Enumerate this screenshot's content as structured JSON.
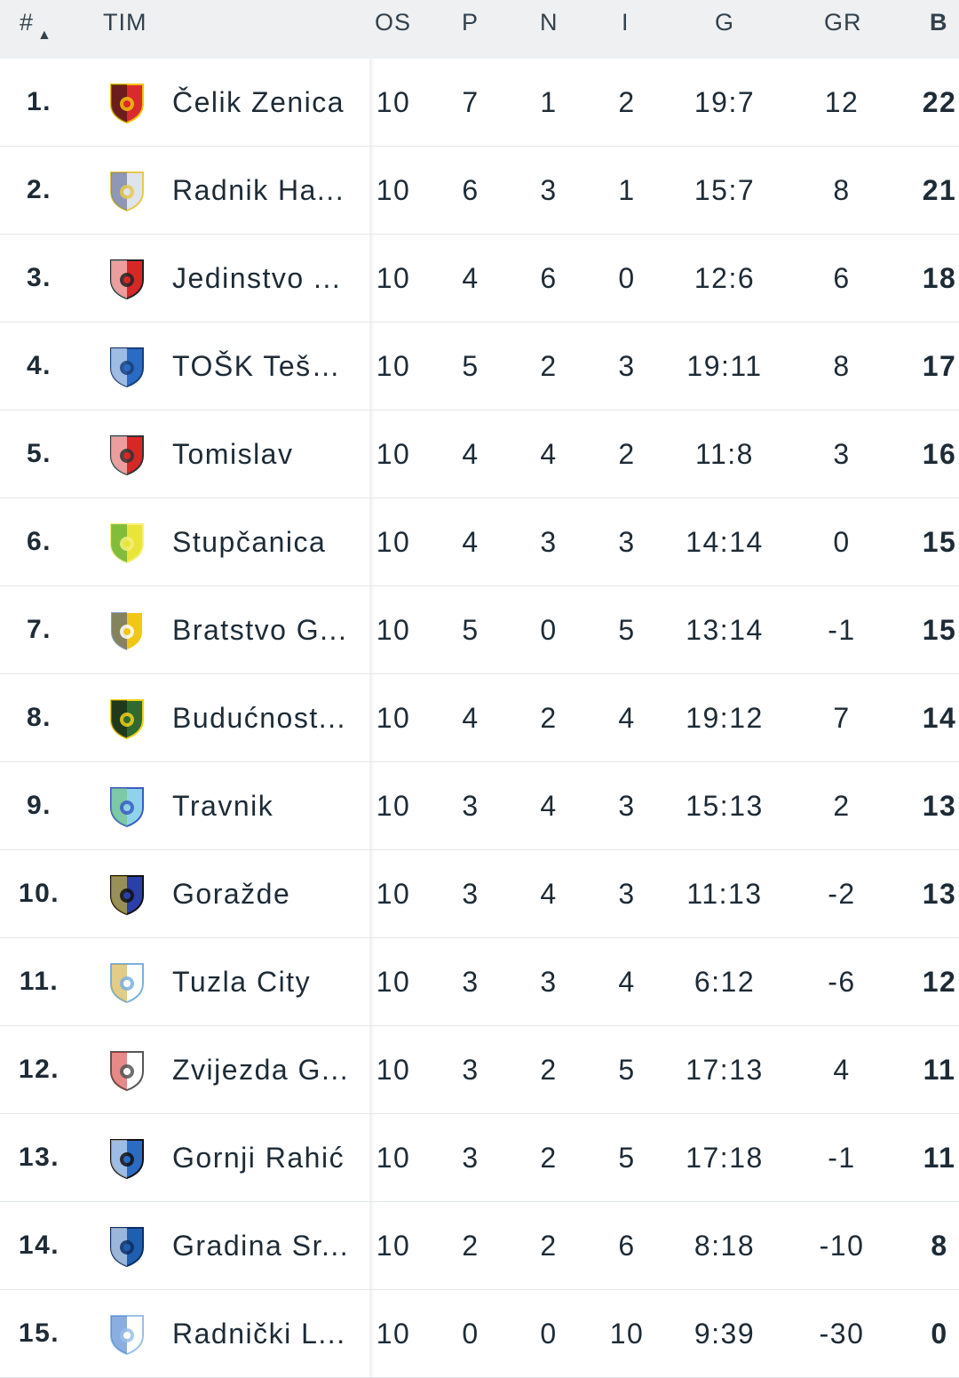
{
  "header": {
    "rank": "#",
    "sort_icon": "▲",
    "team": "TIM",
    "played": "OS",
    "wins": "P",
    "draws": "N",
    "losses": "I",
    "goals": "G",
    "goal_diff": "GR",
    "points": "B"
  },
  "rows": [
    {
      "rank": "1.",
      "team": "Čelik Zenica",
      "played": "10",
      "wins": "7",
      "draws": "1",
      "losses": "2",
      "goals": "19:7",
      "gd": "12",
      "points": "22",
      "crest": {
        "a": "#d92b2b",
        "b": "#111111",
        "c": "#f4c20d"
      }
    },
    {
      "rank": "2.",
      "team": "Radnik Ha...",
      "played": "10",
      "wins": "6",
      "draws": "3",
      "losses": "1",
      "goals": "15:7",
      "gd": "8",
      "points": "21",
      "crest": {
        "a": "#dfe3ea",
        "b": "#4a5a8a",
        "c": "#e8c94a"
      }
    },
    {
      "rank": "3.",
      "team": "Jedinstvo ...",
      "played": "10",
      "wins": "4",
      "draws": "6",
      "losses": "0",
      "goals": "12:6",
      "gd": "6",
      "points": "18",
      "crest": {
        "a": "#d62828",
        "b": "#ffffff",
        "c": "#222222"
      }
    },
    {
      "rank": "4.",
      "team": "TOŠK Tešanj",
      "played": "10",
      "wins": "5",
      "draws": "2",
      "losses": "3",
      "goals": "19:11",
      "gd": "8",
      "points": "17",
      "crest": {
        "a": "#2a6cc4",
        "b": "#ffffff",
        "c": "#1a3f7a"
      }
    },
    {
      "rank": "5.",
      "team": "Tomislav",
      "played": "10",
      "wins": "4",
      "draws": "4",
      "losses": "2",
      "goals": "11:8",
      "gd": "3",
      "points": "16",
      "crest": {
        "a": "#d62828",
        "b": "#ffffff",
        "c": "#333333"
      }
    },
    {
      "rank": "6.",
      "team": "Stupčanica",
      "played": "10",
      "wins": "4",
      "draws": "3",
      "losses": "3",
      "goals": "14:14",
      "gd": "0",
      "points": "15",
      "crest": {
        "a": "#e8e43a",
        "b": "#2e9a3c",
        "c": "#f5f07a"
      }
    },
    {
      "rank": "7.",
      "team": "Bratstvo G...",
      "played": "10",
      "wins": "5",
      "draws": "0",
      "losses": "5",
      "goals": "13:14",
      "gd": "-1",
      "points": "15",
      "crest": {
        "a": "#f2c614",
        "b": "#2a4d9a",
        "c": "#ffffff"
      }
    },
    {
      "rank": "8.",
      "team": "Budućnost...",
      "played": "10",
      "wins": "4",
      "draws": "2",
      "losses": "4",
      "goals": "19:12",
      "gd": "7",
      "points": "14",
      "crest": {
        "a": "#2f6b2f",
        "b": "#111111",
        "c": "#f2d21b"
      }
    },
    {
      "rank": "9.",
      "team": "Travnik",
      "played": "10",
      "wins": "3",
      "draws": "4",
      "losses": "3",
      "goals": "15:13",
      "gd": "2",
      "points": "13",
      "crest": {
        "a": "#8fd3e8",
        "b": "#6fbf6f",
        "c": "#3a5cc4"
      }
    },
    {
      "rank": "10.",
      "team": "Goražde",
      "played": "10",
      "wins": "3",
      "draws": "4",
      "losses": "3",
      "goals": "11:13",
      "gd": "-2",
      "points": "13",
      "crest": {
        "a": "#2a3fa8",
        "b": "#f2d21b",
        "c": "#111111"
      }
    },
    {
      "rank": "11.",
      "team": "Tuzla City",
      "played": "10",
      "wins": "3",
      "draws": "3",
      "losses": "4",
      "goals": "6:12",
      "gd": "-6",
      "points": "12",
      "crest": {
        "a": "#ffffff",
        "b": "#c9a227",
        "c": "#7ab0e0"
      }
    },
    {
      "rank": "12.",
      "team": "Zvijezda G...",
      "played": "10",
      "wins": "3",
      "draws": "2",
      "losses": "5",
      "goals": "17:13",
      "gd": "4",
      "points": "11",
      "crest": {
        "a": "#ffffff",
        "b": "#d62828",
        "c": "#555555"
      }
    },
    {
      "rank": "13.",
      "team": "Gornji Rahić",
      "played": "10",
      "wins": "3",
      "draws": "2",
      "losses": "5",
      "goals": "17:18",
      "gd": "-1",
      "points": "11",
      "crest": {
        "a": "#2a6cc4",
        "b": "#ffffff",
        "c": "#111111"
      }
    },
    {
      "rank": "14.",
      "team": "Gradina Sr...",
      "played": "10",
      "wins": "2",
      "draws": "2",
      "losses": "6",
      "goals": "8:18",
      "gd": "-10",
      "points": "8",
      "crest": {
        "a": "#1f5fb0",
        "b": "#ffffff",
        "c": "#0d2e66"
      }
    },
    {
      "rank": "15.",
      "team": "Radnički L...",
      "played": "10",
      "wins": "0",
      "draws": "0",
      "losses": "10",
      "goals": "9:39",
      "gd": "-30",
      "points": "0",
      "crest": {
        "a": "#ffffff",
        "b": "#2a6cc4",
        "c": "#9ac0e8"
      }
    }
  ]
}
